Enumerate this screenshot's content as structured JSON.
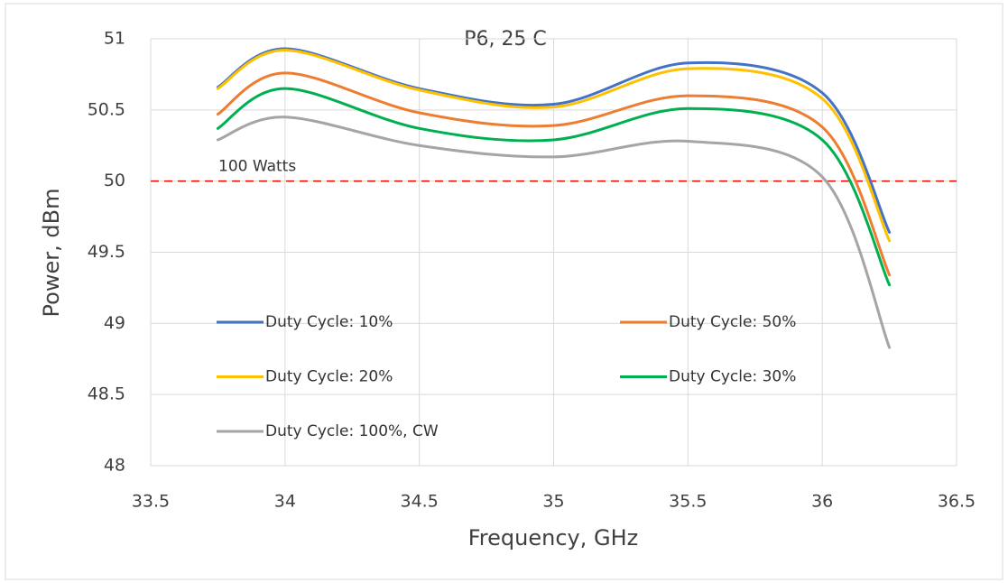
{
  "chart_data": {
    "type": "line",
    "title": "P6, 25 C",
    "x_label": "Frequency, GHz",
    "y_label": "Power, dBm",
    "x": [
      33.75,
      34,
      34.5,
      35,
      35.5,
      36,
      36.25
    ],
    "series": [
      {
        "name": "Duty Cycle: 10%",
        "color": "#4472c4",
        "values": [
          50.66,
          50.93,
          50.65,
          50.54,
          50.83,
          50.62,
          49.64
        ]
      },
      {
        "name": "Duty Cycle: 50%",
        "color": "#ed7d31",
        "values": [
          50.47,
          50.76,
          50.48,
          50.39,
          50.6,
          50.38,
          49.34
        ]
      },
      {
        "name": "Duty Cycle: 20%",
        "color": "#ffc000",
        "values": [
          50.65,
          50.92,
          50.64,
          50.52,
          50.79,
          50.58,
          49.58
        ]
      },
      {
        "name": "Duty Cycle: 30%",
        "color": "#00b050",
        "values": [
          50.37,
          50.65,
          50.37,
          50.29,
          50.51,
          50.29,
          49.27
        ]
      },
      {
        "name": "Duty Cycle: 100%, CW",
        "color": "#a5a5a5",
        "values": [
          50.29,
          50.45,
          50.25,
          50.17,
          50.28,
          50.03,
          48.83
        ]
      }
    ],
    "reference_line": {
      "value": 50,
      "label": "100 Watts",
      "color": "#ff0000"
    },
    "xlim": [
      33.5,
      36.5
    ],
    "xticks": [
      33.5,
      34,
      34.5,
      35,
      35.5,
      36,
      36.5
    ],
    "ylim": [
      48,
      51
    ],
    "yticks": [
      48,
      48.5,
      49,
      49.5,
      50,
      50.5,
      51
    ],
    "grid": true
  }
}
